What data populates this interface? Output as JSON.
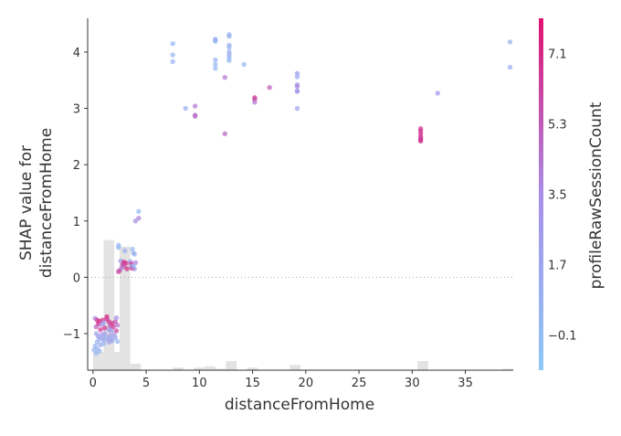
{
  "chart_data": {
    "type": "scatter",
    "title": "",
    "xlabel": "distanceFromHome",
    "ylabel_lines": [
      "SHAP value for",
      "distanceFromHome"
    ],
    "xlim": [
      -0.5,
      39.5
    ],
    "ylim": [
      -1.65,
      4.6
    ],
    "xticks": [
      0,
      5,
      10,
      15,
      20,
      25,
      30,
      35
    ],
    "yticks": [
      -1,
      0,
      1,
      2,
      3,
      4
    ],
    "zero_line": true,
    "grid": false,
    "color_by": {
      "label": "profileRawSessionCount",
      "range": [
        -1.0,
        8.0
      ],
      "ticks": [
        -0.1,
        1.7,
        3.5,
        5.3,
        7.1
      ],
      "low_color": "#8ec8f6",
      "mid_color": "#a88ee6",
      "high_color": "#e0106f",
      "max_point_color": "#d6006a"
    },
    "histogram": {
      "description_values_are_relative_counts": true,
      "bins": [
        {
          "x0": 0.0,
          "x1": 1.0,
          "h": 0.14
        },
        {
          "x0": 1.0,
          "x1": 2.0,
          "h": 1.0
        },
        {
          "x0": 2.0,
          "x1": 2.5,
          "h": 0.14
        },
        {
          "x0": 2.5,
          "x1": 3.5,
          "h": 0.95
        },
        {
          "x0": 3.5,
          "x1": 4.5,
          "h": 0.05
        },
        {
          "x0": 7.5,
          "x1": 8.5,
          "h": 0.02
        },
        {
          "x0": 9.5,
          "x1": 10.5,
          "h": 0.02
        },
        {
          "x0": 10.5,
          "x1": 11.5,
          "h": 0.03
        },
        {
          "x0": 11.5,
          "x1": 12.5,
          "h": 0.01
        },
        {
          "x0": 12.5,
          "x1": 13.5,
          "h": 0.07
        },
        {
          "x0": 14.5,
          "x1": 15.5,
          "h": 0.02
        },
        {
          "x0": 18.5,
          "x1": 19.5,
          "h": 0.04
        },
        {
          "x0": 30.5,
          "x1": 31.5,
          "h": 0.07
        },
        {
          "x0": 38.5,
          "x1": 39.5,
          "h": 0.01
        }
      ]
    },
    "points": [
      [
        7.5,
        4.15,
        0.2
      ],
      [
        7.5,
        3.95,
        0.3
      ],
      [
        7.5,
        3.83,
        0.5
      ],
      [
        8.7,
        3.0,
        0.6
      ],
      [
        9.6,
        3.04,
        4.2
      ],
      [
        9.6,
        2.86,
        5.0
      ],
      [
        9.6,
        2.88,
        4.6
      ],
      [
        11.5,
        4.23,
        0.8
      ],
      [
        11.5,
        4.19,
        0.2
      ],
      [
        11.5,
        4.21,
        0.9
      ],
      [
        11.5,
        3.86,
        0.5
      ],
      [
        11.5,
        3.78,
        0.4
      ],
      [
        11.5,
        3.71,
        0.2
      ],
      [
        12.4,
        3.55,
        4.3
      ],
      [
        12.4,
        2.55,
        4.8
      ],
      [
        12.8,
        4.31,
        1.0
      ],
      [
        12.8,
        4.28,
        0.7
      ],
      [
        12.8,
        4.12,
        1.1
      ],
      [
        12.8,
        4.08,
        0.3
      ],
      [
        12.8,
        4.0,
        1.3
      ],
      [
        12.8,
        3.95,
        1.0
      ],
      [
        12.8,
        3.9,
        0.4
      ],
      [
        12.8,
        3.85,
        0.2
      ],
      [
        14.2,
        3.78,
        0.3
      ],
      [
        15.2,
        3.19,
        6.8
      ],
      [
        15.2,
        3.16,
        5.9
      ],
      [
        15.2,
        3.11,
        4.2
      ],
      [
        16.6,
        3.37,
        5.3
      ],
      [
        19.2,
        3.62,
        2.3
      ],
      [
        19.2,
        3.56,
        1.3
      ],
      [
        19.2,
        3.42,
        3.2
      ],
      [
        19.2,
        3.39,
        3.8
      ],
      [
        19.2,
        3.31,
        3.0
      ],
      [
        19.2,
        3.3,
        2.5
      ],
      [
        19.2,
        3.0,
        1.8
      ],
      [
        30.8,
        2.64,
        6.7
      ],
      [
        30.8,
        2.6,
        6.9
      ],
      [
        30.8,
        2.55,
        7.0
      ],
      [
        30.8,
        2.5,
        6.5
      ],
      [
        30.8,
        2.47,
        6.4
      ],
      [
        30.8,
        2.44,
        6.8
      ],
      [
        30.8,
        2.42,
        6.9
      ],
      [
        32.4,
        3.27,
        2.8
      ],
      [
        39.2,
        4.18,
        0.6
      ],
      [
        39.2,
        3.73,
        1.2
      ],
      [
        4.3,
        1.17,
        0.2
      ],
      [
        4.3,
        1.05,
        4.0
      ],
      [
        4.0,
        1.0,
        3.5
      ],
      [
        2.4,
        0.57,
        0.2
      ],
      [
        2.4,
        0.53,
        0.5
      ],
      [
        3.0,
        0.47,
        0.9
      ],
      [
        3.7,
        0.5,
        0.2
      ],
      [
        3.9,
        0.41,
        0.5
      ],
      [
        3.8,
        0.43,
        0.8
      ],
      [
        2.6,
        0.29,
        2.0
      ],
      [
        2.9,
        0.27,
        6.8
      ],
      [
        3.1,
        0.25,
        7.0
      ],
      [
        2.8,
        0.22,
        6.5
      ],
      [
        2.9,
        0.2,
        5.5
      ],
      [
        2.7,
        0.17,
        4.5
      ],
      [
        3.2,
        0.15,
        7.1
      ],
      [
        2.5,
        0.12,
        4.8
      ],
      [
        2.4,
        0.1,
        6.0
      ],
      [
        3.5,
        0.28,
        1.8
      ],
      [
        3.6,
        0.24,
        6.7
      ],
      [
        3.6,
        0.19,
        2.4
      ],
      [
        3.7,
        0.16,
        7.2
      ],
      [
        3.9,
        0.15,
        3.0
      ],
      [
        4.0,
        0.26,
        4.0
      ],
      [
        3.8,
        0.2,
        0.4
      ],
      [
        0.2,
        -0.73,
        4.0
      ],
      [
        0.4,
        -0.76,
        6.5
      ],
      [
        0.6,
        -0.78,
        7.0
      ],
      [
        0.5,
        -0.83,
        7.2
      ],
      [
        0.3,
        -0.88,
        5.0
      ],
      [
        0.7,
        -0.93,
        6.8
      ],
      [
        0.8,
        -0.84,
        3.5
      ],
      [
        0.9,
        -0.76,
        6.9
      ],
      [
        1.0,
        -0.81,
        2.0
      ],
      [
        1.1,
        -0.9,
        6.7
      ],
      [
        1.3,
        -0.7,
        7.1
      ],
      [
        1.3,
        -0.74,
        6.6
      ],
      [
        1.5,
        -0.79,
        7.0
      ],
      [
        1.6,
        -0.86,
        5.5
      ],
      [
        1.5,
        -0.93,
        3.0
      ],
      [
        1.8,
        -0.82,
        6.8
      ],
      [
        1.9,
        -0.88,
        6.4
      ],
      [
        1.7,
        -0.95,
        2.5
      ],
      [
        2.1,
        -0.79,
        5.8
      ],
      [
        2.2,
        -0.72,
        3.3
      ],
      [
        2.3,
        -0.85,
        4.6
      ],
      [
        2.2,
        -0.95,
        6.0
      ],
      [
        0.3,
        -1.0,
        1.7
      ],
      [
        0.5,
        -1.05,
        2.2
      ],
      [
        0.6,
        -1.1,
        1.5
      ],
      [
        0.4,
        -1.15,
        0.9
      ],
      [
        0.8,
        -1.02,
        2.5
      ],
      [
        0.9,
        -1.08,
        1.9
      ],
      [
        1.0,
        -1.12,
        1.2
      ],
      [
        1.1,
        -1.0,
        2.8
      ],
      [
        1.2,
        -1.06,
        0.8
      ],
      [
        1.4,
        -1.1,
        1.4
      ],
      [
        1.5,
        -1.15,
        2.0
      ],
      [
        1.6,
        -1.04,
        2.6
      ],
      [
        1.7,
        -1.09,
        1.1
      ],
      [
        1.8,
        -1.13,
        1.8
      ],
      [
        2.0,
        -1.02,
        2.3
      ],
      [
        2.1,
        -1.07,
        1.6
      ],
      [
        2.3,
        -1.14,
        0.4
      ],
      [
        0.2,
        -1.22,
        0.6
      ],
      [
        0.4,
        -1.27,
        0.3
      ],
      [
        0.6,
        -1.31,
        0.9
      ],
      [
        0.3,
        -1.35,
        0.2
      ],
      [
        0.1,
        -1.29,
        0.4
      ],
      [
        0.7,
        -1.2,
        1.3
      ],
      [
        1.0,
        -1.18,
        0.5
      ]
    ]
  }
}
